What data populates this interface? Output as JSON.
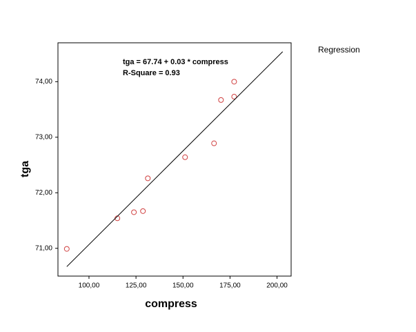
{
  "chart_data": {
    "type": "scatter",
    "x_label": "compress",
    "y_label": "tga",
    "annotations": [
      "tga = 67.74 + 0.03 * compress",
      "R-Square = 0.93"
    ],
    "xlim": [
      83.5,
      207.5
    ],
    "ylim": [
      70.5,
      74.7
    ],
    "xticks": [
      {
        "value": 100,
        "label": "100,00"
      },
      {
        "value": 125,
        "label": "125,00"
      },
      {
        "value": 150,
        "label": "150,00"
      },
      {
        "value": 175,
        "label": "175,00"
      },
      {
        "value": 200,
        "label": "200,00"
      }
    ],
    "yticks": [
      {
        "value": 71,
        "label": "71,00"
      },
      {
        "value": 72,
        "label": "72,00"
      },
      {
        "value": 73,
        "label": "73,00"
      },
      {
        "value": 74,
        "label": "74,00"
      }
    ],
    "series": [
      {
        "color": "#d04040",
        "x": [
          88.2,
          115.1,
          123.9,
          128.7,
          131.3,
          151.1,
          166.5,
          170.2,
          177.2,
          177.2
        ],
        "values": [
          70.99,
          71.54,
          71.65,
          71.67,
          72.26,
          72.64,
          72.89,
          73.67,
          74.0,
          73.73
        ]
      },
      {
        "name": "Regression",
        "type": "line",
        "color": "#000000",
        "x": [
          88.2,
          203.0
        ],
        "values": [
          70.67,
          74.54
        ]
      }
    ]
  }
}
